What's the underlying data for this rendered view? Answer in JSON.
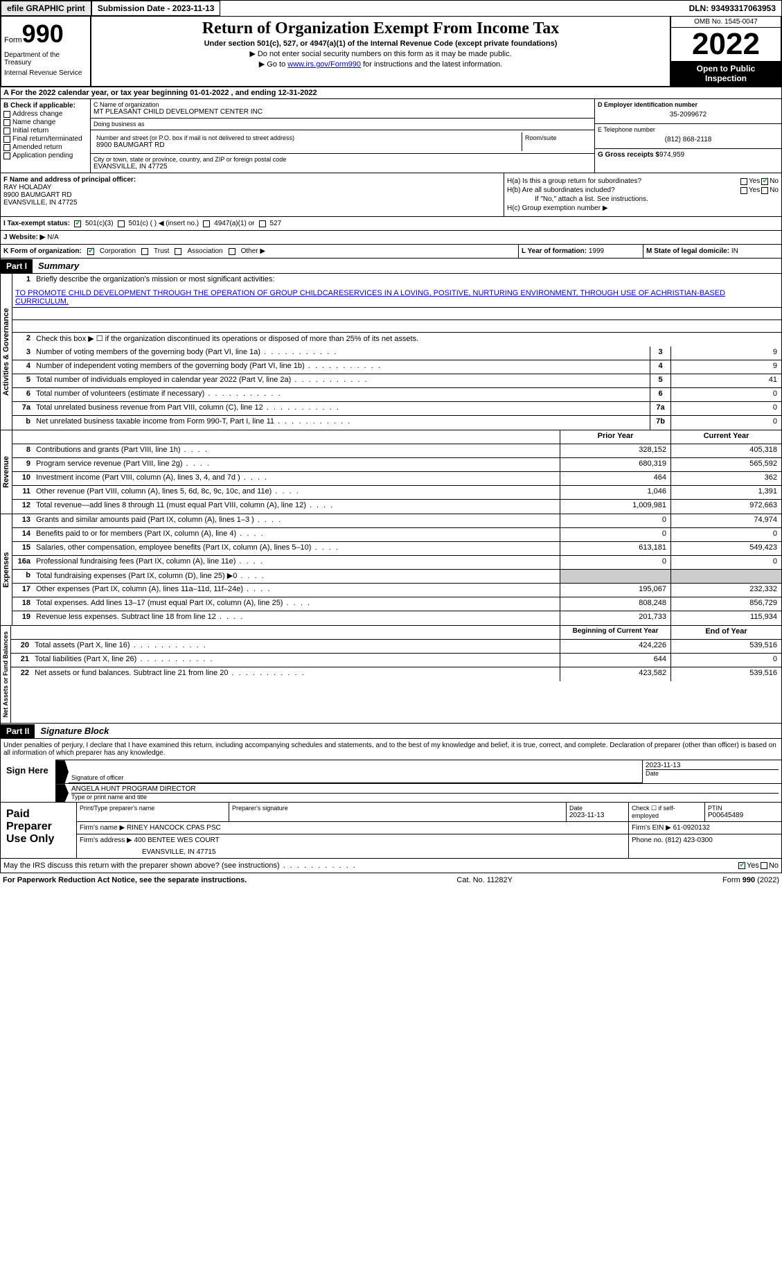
{
  "header": {
    "efile_btn": "efile GRAPHIC print",
    "submission": "Submission Date - 2023-11-13",
    "dln": "DLN: 93493317063953"
  },
  "form_top": {
    "form_word": "Form",
    "form_num": "990",
    "dept": "Department of the Treasury",
    "irs": "Internal Revenue Service",
    "title": "Return of Organization Exempt From Income Tax",
    "subtitle": "Under section 501(c), 527, or 4947(a)(1) of the Internal Revenue Code (except private foundations)",
    "note1": "▶ Do not enter social security numbers on this form as it may be made public.",
    "note2_pre": "▶ Go to ",
    "note2_link": "www.irs.gov/Form990",
    "note2_post": " for instructions and the latest information.",
    "omb": "OMB No. 1545-0047",
    "year": "2022",
    "inspect1": "Open to Public",
    "inspect2": "Inspection"
  },
  "section_a": "A For the 2022 calendar year, or tax year beginning 01-01-2022    , and ending 12-31-2022",
  "section_b": {
    "label": "B Check if applicable:",
    "opts": [
      "Address change",
      "Name change",
      "Initial return",
      "Final return/terminated",
      "Amended return",
      "Application pending"
    ]
  },
  "section_c": {
    "name_label": "C Name of organization",
    "name": "MT PLEASANT CHILD DEVELOPMENT CENTER INC",
    "dba_label": "Doing business as",
    "dba": "",
    "addr_label": "Number and street (or P.O. box if mail is not delivered to street address)",
    "room_label": "Room/suite",
    "addr": "8900 BAUMGART RD",
    "city_label": "City or town, state or province, country, and ZIP or foreign postal code",
    "city": "EVANSVILLE, IN  47725"
  },
  "section_d": {
    "ein_label": "D Employer identification number",
    "ein": "35-2099672",
    "phone_label": "E Telephone number",
    "phone": "(812) 868-2118",
    "gross_label": "G Gross receipts $",
    "gross": "974,959"
  },
  "section_f": {
    "label": "F  Name and address of principal officer:",
    "name": "RAY HOLADAY",
    "addr1": "8900 BAUMGART RD",
    "addr2": "EVANSVILLE, IN  47725"
  },
  "section_h": {
    "ha": "H(a)  Is this a group return for subordinates?",
    "hb": "H(b)  Are all subordinates included?",
    "hb_note": "If \"No,\" attach a list. See instructions.",
    "hc": "H(c)  Group exemption number ▶",
    "yes": "Yes",
    "no": "No"
  },
  "row_i": {
    "label": "I   Tax-exempt status:",
    "opt1": "501(c)(3)",
    "opt2": "501(c) (   ) ◀ (insert no.)",
    "opt3": "4947(a)(1) or",
    "opt4": "527"
  },
  "row_j": {
    "label": "J   Website: ▶",
    "val": "N/A"
  },
  "row_k": {
    "label": "K Form of organization:",
    "opts": [
      "Corporation",
      "Trust",
      "Association",
      "Other ▶"
    ],
    "l_label": "L Year of formation:",
    "l_val": "1999",
    "m_label": "M State of legal domicile:",
    "m_val": "IN"
  },
  "part1": {
    "header": "Part I",
    "title": "Summary"
  },
  "summary": {
    "side1": "Activities & Governance",
    "side2": "Revenue",
    "side3": "Expenses",
    "side4": "Net Assets or Fund Balances",
    "r1_label": "Briefly describe the organization's mission or most significant activities:",
    "r1_text": "TO PROMOTE CHILD DEVELOPMENT THROUGH THE OPERATION OF GROUP CHILDCARESERVICES IN A LOVING, POSITIVE, NURTURING ENVIRONMENT, THROUGH USE OF ACHRISTIAN-BASED CURRICULUM.",
    "r2": "Check this box ▶ ☐  if the organization discontinued its operations or disposed of more than 25% of its net assets.",
    "rows": [
      {
        "n": "3",
        "label": "Number of voting members of the governing body (Part VI, line 1a)",
        "box": "3",
        "v": "9"
      },
      {
        "n": "4",
        "label": "Number of independent voting members of the governing body (Part VI, line 1b)",
        "box": "4",
        "v": "9"
      },
      {
        "n": "5",
        "label": "Total number of individuals employed in calendar year 2022 (Part V, line 2a)",
        "box": "5",
        "v": "41"
      },
      {
        "n": "6",
        "label": "Total number of volunteers (estimate if necessary)",
        "box": "6",
        "v": "0"
      },
      {
        "n": "7a",
        "label": "Total unrelated business revenue from Part VIII, column (C), line 12",
        "box": "7a",
        "v": "0"
      },
      {
        "n": "b",
        "label": "Net unrelated business taxable income from Form 990-T, Part I, line 11",
        "box": "7b",
        "v": "0"
      }
    ],
    "py_header": "Prior Year",
    "cy_header": "Current Year",
    "rev_rows": [
      {
        "n": "8",
        "label": "Contributions and grants (Part VIII, line 1h)",
        "py": "328,152",
        "cy": "405,318"
      },
      {
        "n": "9",
        "label": "Program service revenue (Part VIII, line 2g)",
        "py": "680,319",
        "cy": "565,592"
      },
      {
        "n": "10",
        "label": "Investment income (Part VIII, column (A), lines 3, 4, and 7d )",
        "py": "464",
        "cy": "362"
      },
      {
        "n": "11",
        "label": "Other revenue (Part VIII, column (A), lines 5, 6d, 8c, 9c, 10c, and 11e)",
        "py": "1,046",
        "cy": "1,391"
      },
      {
        "n": "12",
        "label": "Total revenue—add lines 8 through 11 (must equal Part VIII, column (A), line 12)",
        "py": "1,009,981",
        "cy": "972,663"
      }
    ],
    "exp_rows": [
      {
        "n": "13",
        "label": "Grants and similar amounts paid (Part IX, column (A), lines 1–3 )",
        "py": "0",
        "cy": "74,974"
      },
      {
        "n": "14",
        "label": "Benefits paid to or for members (Part IX, column (A), line 4)",
        "py": "0",
        "cy": "0"
      },
      {
        "n": "15",
        "label": "Salaries, other compensation, employee benefits (Part IX, column (A), lines 5–10)",
        "py": "613,181",
        "cy": "549,423"
      },
      {
        "n": "16a",
        "label": "Professional fundraising fees (Part IX, column (A), line 11e)",
        "py": "0",
        "cy": "0"
      },
      {
        "n": "b",
        "label": "Total fundraising expenses (Part IX, column (D), line 25) ▶0",
        "py": "",
        "cy": "",
        "shaded": true
      },
      {
        "n": "17",
        "label": "Other expenses (Part IX, column (A), lines 11a–11d, 11f–24e)",
        "py": "195,067",
        "cy": "232,332"
      },
      {
        "n": "18",
        "label": "Total expenses. Add lines 13–17 (must equal Part IX, column (A), line 25)",
        "py": "808,248",
        "cy": "856,729"
      },
      {
        "n": "19",
        "label": "Revenue less expenses. Subtract line 18 from line 12",
        "py": "201,733",
        "cy": "115,934"
      }
    ],
    "na_header1": "Beginning of Current Year",
    "na_header2": "End of Year",
    "na_rows": [
      {
        "n": "20",
        "label": "Total assets (Part X, line 16)",
        "py": "424,226",
        "cy": "539,516"
      },
      {
        "n": "21",
        "label": "Total liabilities (Part X, line 26)",
        "py": "644",
        "cy": "0"
      },
      {
        "n": "22",
        "label": "Net assets or fund balances. Subtract line 21 from line 20",
        "py": "423,582",
        "cy": "539,516"
      }
    ]
  },
  "part2": {
    "header": "Part II",
    "title": "Signature Block"
  },
  "sig": {
    "declaration": "Under penalties of perjury, I declare that I have examined this return, including accompanying schedules and statements, and to the best of my knowledge and belief, it is true, correct, and complete. Declaration of preparer (other than officer) is based on all information of which preparer has any knowledge.",
    "sign_here": "Sign Here",
    "sig_officer": "Signature of officer",
    "date": "Date",
    "date_val": "2023-11-13",
    "name_title": "ANGELA HUNT  PROGRAM DIRECTOR",
    "type_label": "Type or print name and title"
  },
  "prep": {
    "title": "Paid Preparer Use Only",
    "print_label": "Print/Type preparer's name",
    "sig_label": "Preparer's signature",
    "date_label": "Date",
    "date_val": "2023-11-13",
    "check_label": "Check ☐ if self-employed",
    "ptin_label": "PTIN",
    "ptin": "P00645489",
    "firm_name_label": "Firm's name     ▶",
    "firm_name": "RINEY HANCOCK CPAS PSC",
    "firm_ein_label": "Firm's EIN ▶",
    "firm_ein": "61-0920132",
    "firm_addr_label": "Firm's address ▶",
    "firm_addr1": "400 BENTEE WES COURT",
    "firm_addr2": "EVANSVILLE, IN  47715",
    "phone_label": "Phone no.",
    "phone": "(812) 423-0300"
  },
  "discuss": {
    "text": "May the IRS discuss this return with the preparer shown above? (see instructions)",
    "yes": "Yes",
    "no": "No"
  },
  "footer": {
    "left": "For Paperwork Reduction Act Notice, see the separate instructions.",
    "center": "Cat. No. 11282Y",
    "right": "Form 990 (2022)"
  }
}
